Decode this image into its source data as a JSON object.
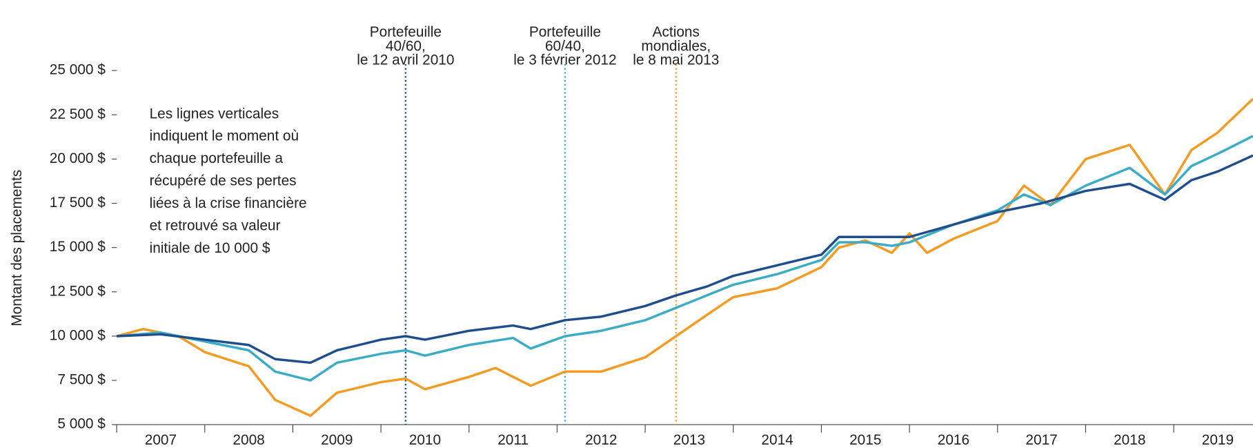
{
  "chart_data": {
    "type": "line",
    "y_label": "Montant des placements",
    "note": [
      "Les lignes verticales",
      "indiquent le moment où",
      "chaque portefeuille a",
      "récupéré de ses pertes",
      "liées à la crise financière",
      "et retrouvé sa valeur",
      "initiale de 10 000 $"
    ],
    "xlim": [
      2007,
      2019.9
    ],
    "xticks": [
      {
        "value": 2007,
        "label": "2007"
      },
      {
        "value": 2008,
        "label": "2008"
      },
      {
        "value": 2009,
        "label": "2009"
      },
      {
        "value": 2010,
        "label": "2010"
      },
      {
        "value": 2011,
        "label": "2011"
      },
      {
        "value": 2012,
        "label": "2012"
      },
      {
        "value": 2013,
        "label": "2013"
      },
      {
        "value": 2014,
        "label": "2014"
      },
      {
        "value": 2015,
        "label": "2015"
      },
      {
        "value": 2016,
        "label": "2016"
      },
      {
        "value": 2017,
        "label": "2017"
      },
      {
        "value": 2018,
        "label": "2018"
      },
      {
        "value": 2019,
        "label": "2019"
      }
    ],
    "ylim": [
      5000,
      25000
    ],
    "yticks": [
      {
        "value": 5000,
        "label": "5 000 $"
      },
      {
        "value": 7500,
        "label": "7 500 $"
      },
      {
        "value": 10000,
        "label": "10 000 $"
      },
      {
        "value": 12500,
        "label": "12 500 $"
      },
      {
        "value": 15000,
        "label": "15 000 $"
      },
      {
        "value": 17500,
        "label": "17 500 $"
      },
      {
        "value": 20000,
        "label": "20 000 $"
      },
      {
        "value": 22500,
        "label": "22 500 $"
      },
      {
        "value": 25000,
        "label": "25 000 $"
      }
    ],
    "grid": false,
    "annotations": [
      {
        "x": 2010.28,
        "color": "#1f4e8c",
        "lines": [
          "Portefeuille",
          "40/60,",
          "le 12 avril 2010"
        ]
      },
      {
        "x": 2012.09,
        "color": "#3aacc6",
        "lines": [
          "Portefeuille",
          "60/40,",
          "le 3 février 2012"
        ]
      },
      {
        "x": 2013.35,
        "color": "#f59b23",
        "lines": [
          "Actions",
          "mondiales,",
          "le 8 mai 2013"
        ]
      }
    ],
    "series": [
      {
        "color": "#f59b23",
        "x": [
          2007.0,
          2007.3,
          2007.7,
          2008.0,
          2008.5,
          2008.8,
          2009.2,
          2009.5,
          2010.0,
          2010.28,
          2010.5,
          2011.0,
          2011.3,
          2011.7,
          2012.09,
          2012.5,
          2013.0,
          2013.35,
          2013.7,
          2014.0,
          2014.5,
          2015.0,
          2015.2,
          2015.5,
          2015.8,
          2016.0,
          2016.2,
          2016.5,
          2017.0,
          2017.3,
          2017.6,
          2018.0,
          2018.5,
          2018.9,
          2019.2,
          2019.5,
          2019.9
        ],
        "values": [
          10000,
          10400,
          10000,
          9100,
          8300,
          6400,
          5500,
          6800,
          7400,
          7600,
          7000,
          7700,
          8200,
          7200,
          8000,
          8000,
          8800,
          10000,
          11200,
          12200,
          12700,
          13900,
          15000,
          15400,
          14700,
          15800,
          14700,
          15500,
          16500,
          18500,
          17400,
          20000,
          20800,
          18000,
          20500,
          21500,
          23400
        ]
      },
      {
        "color": "#3aacc6",
        "x": [
          2007.0,
          2007.5,
          2008.0,
          2008.5,
          2008.8,
          2009.2,
          2009.5,
          2010.0,
          2010.28,
          2010.5,
          2011.0,
          2011.5,
          2011.7,
          2012.09,
          2012.5,
          2013.0,
          2013.35,
          2013.7,
          2014.0,
          2014.5,
          2015.0,
          2015.2,
          2015.5,
          2015.8,
          2016.0,
          2016.5,
          2017.0,
          2017.3,
          2017.6,
          2018.0,
          2018.5,
          2018.9,
          2019.2,
          2019.5,
          2019.9
        ],
        "values": [
          10000,
          10200,
          9700,
          9200,
          8000,
          7500,
          8500,
          9000,
          9200,
          8900,
          9500,
          9900,
          9300,
          10000,
          10300,
          10900,
          11600,
          12300,
          12900,
          13500,
          14300,
          15300,
          15300,
          15100,
          15300,
          16300,
          17100,
          18000,
          17400,
          18500,
          19500,
          18000,
          19600,
          20300,
          21300
        ]
      },
      {
        "color": "#1f4e8c",
        "x": [
          2007.0,
          2007.5,
          2008.0,
          2008.5,
          2008.8,
          2009.2,
          2009.5,
          2010.0,
          2010.28,
          2010.5,
          2011.0,
          2011.5,
          2011.7,
          2012.09,
          2012.5,
          2013.0,
          2013.35,
          2013.7,
          2014.0,
          2014.5,
          2015.0,
          2015.2,
          2015.5,
          2015.8,
          2016.0,
          2016.5,
          2017.0,
          2017.5,
          2018.0,
          2018.5,
          2018.9,
          2019.2,
          2019.5,
          2019.9
        ],
        "values": [
          10000,
          10100,
          9800,
          9500,
          8700,
          8500,
          9200,
          9800,
          10000,
          9800,
          10300,
          10600,
          10400,
          10900,
          11100,
          11700,
          12300,
          12800,
          13400,
          14000,
          14600,
          15600,
          15600,
          15600,
          15600,
          16300,
          17000,
          17500,
          18200,
          18600,
          17700,
          18800,
          19300,
          20200
        ]
      }
    ]
  }
}
